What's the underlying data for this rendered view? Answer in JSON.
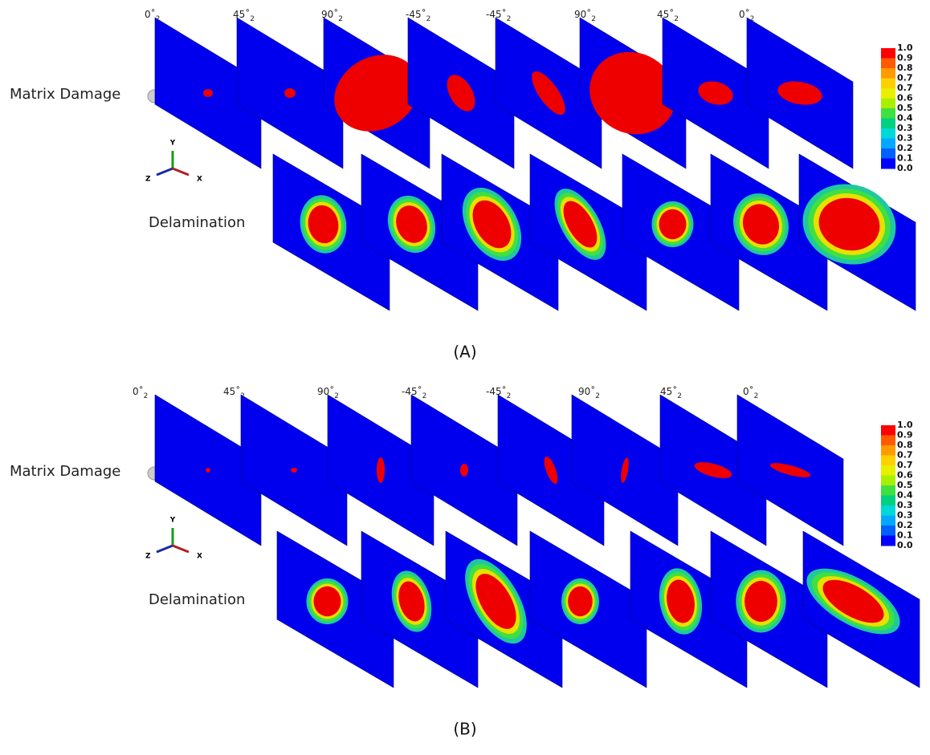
{
  "panels": [
    {
      "label": "(A)",
      "ply_labels": [
        {
          "angle": "0˚",
          "sub": "2"
        },
        {
          "angle": "45˚",
          "sub": "2"
        },
        {
          "angle": "90˚",
          "sub": "2"
        },
        {
          "angle": "-45˚",
          "sub": "2"
        },
        {
          "angle": "-45˚",
          "sub": "2"
        },
        {
          "angle": "90˚",
          "sub": "2"
        },
        {
          "angle": "45˚",
          "sub": "2"
        },
        {
          "angle": "0˚",
          "sub": "2"
        }
      ],
      "rows": [
        "Matrix Damage",
        "Delamination"
      ],
      "axes": {
        "y": "Y",
        "z": "Z",
        "x": "X"
      },
      "legend": [
        "1.0",
        "0.9",
        "0.8",
        "0.7",
        "0.7",
        "0.6",
        "0.5",
        "0.4",
        "0.3",
        "0.3",
        "0.2",
        "0.1",
        "0.0"
      ]
    },
    {
      "label": "(B)",
      "ply_labels": [
        {
          "angle": "0˚",
          "sub": "2"
        },
        {
          "angle": "45˚",
          "sub": "2"
        },
        {
          "angle": "90˚",
          "sub": "2"
        },
        {
          "angle": "-45˚",
          "sub": "2"
        },
        {
          "angle": "-45˚",
          "sub": "2"
        },
        {
          "angle": "90˚",
          "sub": "2"
        },
        {
          "angle": "45˚",
          "sub": "2"
        },
        {
          "angle": "0˚",
          "sub": "2"
        }
      ],
      "rows": [
        "Matrix Damage",
        "Delamination"
      ],
      "axes": {
        "y": "Y",
        "z": "Z",
        "x": "X"
      },
      "legend": [
        "1.0",
        "0.9",
        "0.8",
        "0.7",
        "0.7",
        "0.6",
        "0.5",
        "0.4",
        "0.3",
        "0.3",
        "0.2",
        "0.1",
        "0.0"
      ]
    }
  ]
}
